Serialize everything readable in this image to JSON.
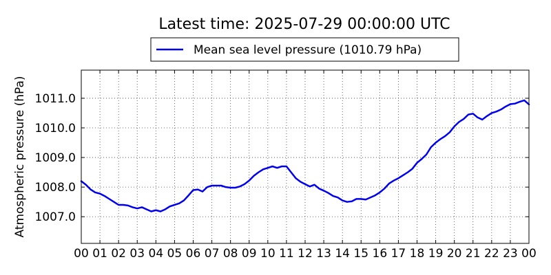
{
  "chart_data": {
    "type": "line",
    "title": "Latest time: 2025-07-29 00:00:00 UTC",
    "xlabel": "",
    "ylabel": "Atmospheric pressure (hPa)",
    "xlim": [
      0,
      24
    ],
    "ylim": [
      1006.1,
      1011.95
    ],
    "x_tick_labels": [
      "00",
      "01",
      "02",
      "03",
      "04",
      "05",
      "06",
      "07",
      "08",
      "09",
      "10",
      "11",
      "12",
      "13",
      "14",
      "15",
      "16",
      "17",
      "18",
      "19",
      "20",
      "21",
      "22",
      "23",
      "00"
    ],
    "y_ticks": [
      1007.0,
      1008.0,
      1009.0,
      1010.0,
      1011.0
    ],
    "y_tick_labels": [
      "1007.0",
      "1008.0",
      "1009.0",
      "1010.0",
      "1011.0"
    ],
    "grid": true,
    "legend_position": "top-center",
    "series": [
      {
        "name": "Mean sea level pressure (1010.79 hPa)",
        "color": "#0000ee",
        "points": [
          [
            0.0,
            1008.2
          ],
          [
            0.25,
            1008.08
          ],
          [
            0.5,
            1007.92
          ],
          [
            0.75,
            1007.82
          ],
          [
            1.0,
            1007.78
          ],
          [
            1.25,
            1007.7
          ],
          [
            1.5,
            1007.6
          ],
          [
            1.75,
            1007.5
          ],
          [
            2.0,
            1007.4
          ],
          [
            2.25,
            1007.4
          ],
          [
            2.5,
            1007.38
          ],
          [
            2.75,
            1007.32
          ],
          [
            3.0,
            1007.28
          ],
          [
            3.25,
            1007.32
          ],
          [
            3.5,
            1007.25
          ],
          [
            3.75,
            1007.18
          ],
          [
            4.0,
            1007.22
          ],
          [
            4.25,
            1007.18
          ],
          [
            4.5,
            1007.25
          ],
          [
            4.75,
            1007.35
          ],
          [
            5.0,
            1007.4
          ],
          [
            5.25,
            1007.45
          ],
          [
            5.5,
            1007.55
          ],
          [
            5.75,
            1007.72
          ],
          [
            6.0,
            1007.9
          ],
          [
            6.25,
            1007.92
          ],
          [
            6.5,
            1007.85
          ],
          [
            6.75,
            1008.0
          ],
          [
            7.0,
            1008.05
          ],
          [
            7.25,
            1008.05
          ],
          [
            7.5,
            1008.05
          ],
          [
            7.75,
            1008.0
          ],
          [
            8.0,
            1007.98
          ],
          [
            8.25,
            1007.98
          ],
          [
            8.5,
            1008.02
          ],
          [
            8.75,
            1008.1
          ],
          [
            9.0,
            1008.22
          ],
          [
            9.25,
            1008.38
          ],
          [
            9.5,
            1008.5
          ],
          [
            9.75,
            1008.6
          ],
          [
            10.0,
            1008.65
          ],
          [
            10.25,
            1008.7
          ],
          [
            10.5,
            1008.65
          ],
          [
            10.75,
            1008.7
          ],
          [
            11.0,
            1008.7
          ],
          [
            11.25,
            1008.5
          ],
          [
            11.5,
            1008.3
          ],
          [
            11.75,
            1008.18
          ],
          [
            12.0,
            1008.1
          ],
          [
            12.25,
            1008.02
          ],
          [
            12.5,
            1008.08
          ],
          [
            12.75,
            1007.95
          ],
          [
            13.0,
            1007.88
          ],
          [
            13.25,
            1007.8
          ],
          [
            13.5,
            1007.7
          ],
          [
            13.75,
            1007.65
          ],
          [
            14.0,
            1007.55
          ],
          [
            14.25,
            1007.5
          ],
          [
            14.5,
            1007.52
          ],
          [
            14.75,
            1007.6
          ],
          [
            15.0,
            1007.6
          ],
          [
            15.25,
            1007.58
          ],
          [
            15.5,
            1007.65
          ],
          [
            15.75,
            1007.72
          ],
          [
            16.0,
            1007.82
          ],
          [
            16.25,
            1007.95
          ],
          [
            16.5,
            1008.12
          ],
          [
            16.75,
            1008.22
          ],
          [
            17.0,
            1008.3
          ],
          [
            17.25,
            1008.4
          ],
          [
            17.5,
            1008.5
          ],
          [
            17.75,
            1008.62
          ],
          [
            18.0,
            1008.82
          ],
          [
            18.25,
            1008.95
          ],
          [
            18.5,
            1009.1
          ],
          [
            18.75,
            1009.35
          ],
          [
            19.0,
            1009.5
          ],
          [
            19.25,
            1009.62
          ],
          [
            19.5,
            1009.72
          ],
          [
            19.75,
            1009.85
          ],
          [
            20.0,
            1010.05
          ],
          [
            20.25,
            1010.2
          ],
          [
            20.5,
            1010.3
          ],
          [
            20.75,
            1010.45
          ],
          [
            21.0,
            1010.48
          ],
          [
            21.25,
            1010.35
          ],
          [
            21.5,
            1010.28
          ],
          [
            21.75,
            1010.4
          ],
          [
            22.0,
            1010.5
          ],
          [
            22.25,
            1010.55
          ],
          [
            22.5,
            1010.62
          ],
          [
            22.75,
            1010.72
          ],
          [
            23.0,
            1010.8
          ],
          [
            23.25,
            1010.82
          ],
          [
            23.5,
            1010.88
          ],
          [
            23.75,
            1010.93
          ],
          [
            24.0,
            1010.79
          ]
        ]
      }
    ]
  }
}
